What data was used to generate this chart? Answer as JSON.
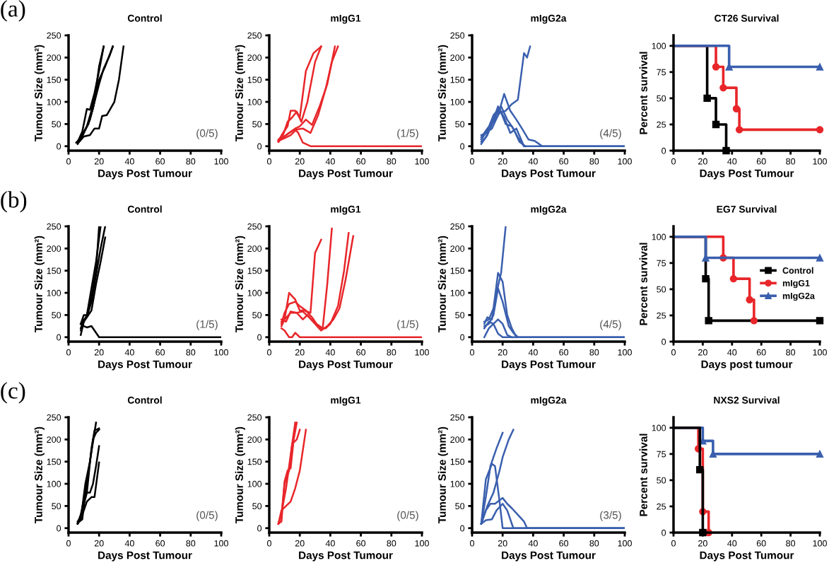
{
  "chart_data": [
    {
      "type": "line",
      "title": "Control",
      "xlabel": "Days Post Tumour",
      "ylabel": "Tumour Size (mm²)",
      "xlim": [
        0,
        100
      ],
      "xticks": [
        0,
        20,
        40,
        60,
        80,
        100
      ],
      "ylim": [
        -10,
        250
      ],
      "yticks": [
        0,
        50,
        100,
        150,
        200,
        250
      ],
      "annotations": [
        "(a)",
        "(0/5)"
      ],
      "series": [
        {
          "color": "#000000",
          "x": [
            5,
            8,
            12,
            15,
            18,
            20,
            23
          ],
          "values": [
            8,
            20,
            45,
            80,
            130,
            180,
            225
          ]
        },
        {
          "color": "#000000",
          "x": [
            6,
            9,
            12,
            14,
            17,
            20,
            23
          ],
          "values": [
            10,
            33,
            84,
            82,
            120,
            170,
            225
          ]
        },
        {
          "color": "#000000",
          "x": [
            6,
            9,
            13,
            16,
            20,
            24,
            29
          ],
          "values": [
            5,
            25,
            50,
            85,
            150,
            180,
            225
          ]
        },
        {
          "color": "#000000",
          "x": [
            6,
            9,
            14,
            17,
            20,
            23,
            27,
            29
          ],
          "values": [
            8,
            22,
            60,
            100,
            140,
            175,
            205,
            225
          ]
        },
        {
          "color": "#000000",
          "x": [
            7,
            10,
            14,
            17,
            20,
            22,
            25,
            30,
            33,
            36
          ],
          "values": [
            10,
            22,
            25,
            40,
            40,
            68,
            70,
            100,
            150,
            225
          ]
        }
      ]
    },
    {
      "type": "line",
      "title": "mIgG1",
      "xlabel": "Days Post Tumour",
      "ylabel": "Tumour Size (mm²)",
      "xlim": [
        0,
        100
      ],
      "xticks": [
        0,
        20,
        40,
        60,
        80,
        100
      ],
      "ylim": [
        -10,
        250
      ],
      "yticks": [
        0,
        50,
        100,
        150,
        200,
        250
      ],
      "annotations": [
        "(1/5)"
      ],
      "series": [
        {
          "color": "#e8262a",
          "x": [
            6,
            9,
            12,
            14,
            17,
            20,
            24,
            29,
            34
          ],
          "values": [
            12,
            30,
            45,
            80,
            80,
            65,
            170,
            210,
            225
          ]
        },
        {
          "color": "#e8262a",
          "x": [
            6,
            9,
            12,
            15,
            18,
            21,
            25,
            30,
            34
          ],
          "values": [
            15,
            25,
            55,
            65,
            78,
            55,
            100,
            190,
            225
          ]
        },
        {
          "color": "#e8262a",
          "x": [
            6,
            9,
            13,
            17,
            20,
            24,
            28,
            33,
            38,
            43
          ],
          "values": [
            10,
            20,
            30,
            40,
            45,
            60,
            48,
            90,
            140,
            225
          ]
        },
        {
          "color": "#e8262a",
          "x": [
            6,
            10,
            14,
            18,
            22,
            27,
            32,
            37,
            41,
            45
          ],
          "values": [
            12,
            18,
            25,
            38,
            40,
            30,
            70,
            130,
            190,
            225
          ]
        },
        {
          "color": "#e8262a",
          "x": [
            6,
            9,
            13,
            17,
            19,
            22,
            27,
            100
          ],
          "values": [
            10,
            20,
            30,
            38,
            30,
            8,
            0,
            0
          ]
        }
      ]
    },
    {
      "type": "line",
      "title": "mIgG2a",
      "xlabel": "Days Post Tumour",
      "ylabel": "Tumour Size (mm²)",
      "xlim": [
        0,
        100
      ],
      "xticks": [
        0,
        20,
        40,
        60,
        80,
        100
      ],
      "ylim": [
        -10,
        250
      ],
      "yticks": [
        0,
        50,
        100,
        150,
        200,
        250
      ],
      "annotations": [
        "(4/5)"
      ],
      "series": [
        {
          "color": "#3a5fae",
          "x": [
            6,
            10,
            14,
            18,
            22,
            26,
            30,
            34,
            36,
            38
          ],
          "values": [
            20,
            40,
            55,
            75,
            80,
            95,
            105,
            210,
            200,
            225
          ]
        },
        {
          "color": "#3a5fae",
          "x": [
            6,
            9,
            13,
            17,
            21,
            25,
            29,
            33,
            37,
            41,
            46,
            100
          ],
          "values": [
            25,
            30,
            40,
            70,
            118,
            80,
            60,
            38,
            15,
            12,
            0,
            0
          ]
        },
        {
          "color": "#3a5fae",
          "x": [
            6,
            9,
            13,
            17,
            21,
            25,
            29,
            34,
            100
          ],
          "values": [
            10,
            20,
            50,
            90,
            65,
            30,
            40,
            0,
            0
          ]
        },
        {
          "color": "#3a5fae",
          "x": [
            6,
            10,
            14,
            18,
            22,
            26,
            30,
            34
          ],
          "values": [
            5,
            25,
            60,
            85,
            50,
            45,
            20,
            0
          ]
        },
        {
          "color": "#3a5fae",
          "x": [
            6,
            10,
            14,
            19,
            23,
            27,
            31,
            35
          ],
          "values": [
            15,
            35,
            70,
            90,
            60,
            40,
            10,
            0
          ]
        }
      ]
    },
    {
      "type": "step",
      "title": "CT26 Survival",
      "xlabel": "Days Post Tumour",
      "ylabel": "Percent survival",
      "xlim": [
        0,
        100
      ],
      "xticks": [
        0,
        20,
        40,
        60,
        80,
        100
      ],
      "ylim": [
        0,
        110
      ],
      "yticks": [
        0,
        25,
        50,
        75,
        100
      ],
      "series": [
        {
          "color": "#000000",
          "marker": "square",
          "x": [
            0,
            23,
            29,
            36
          ],
          "values": [
            100,
            50,
            25,
            0
          ]
        },
        {
          "color": "#e8262a",
          "marker": "circle",
          "x": [
            0,
            29,
            34,
            43,
            45,
            100
          ],
          "values": [
            100,
            80,
            60,
            40,
            20,
            20
          ]
        },
        {
          "color": "#3a5fae",
          "marker": "triangle",
          "x": [
            0,
            38,
            100
          ],
          "values": [
            100,
            80,
            80
          ]
        }
      ]
    },
    {
      "type": "line",
      "title": "Control",
      "xlabel": "Days Post Tumour",
      "ylabel": "Tumour Size (mm²)",
      "xlim": [
        0,
        100
      ],
      "xticks": [
        0,
        20,
        40,
        60,
        80,
        100
      ],
      "ylim": [
        -10,
        250
      ],
      "yticks": [
        0,
        50,
        100,
        150,
        200,
        250
      ],
      "annotations": [
        "(b)",
        "(1/5)"
      ],
      "series": [
        {
          "color": "#000000",
          "x": [
            8,
            10,
            12,
            15,
            18,
            21
          ],
          "values": [
            30,
            50,
            50,
            110,
            170,
            250
          ]
        },
        {
          "color": "#000000",
          "x": [
            8,
            10,
            12,
            15,
            18,
            21,
            24
          ],
          "values": [
            20,
            40,
            45,
            80,
            140,
            200,
            250
          ]
        },
        {
          "color": "#000000",
          "x": [
            8,
            10,
            12,
            15,
            18,
            21,
            24
          ],
          "values": [
            15,
            35,
            45,
            60,
            120,
            170,
            225
          ]
        },
        {
          "color": "#000000",
          "x": [
            8,
            10,
            12,
            15,
            18,
            20
          ],
          "values": [
            5,
            35,
            50,
            90,
            150,
            250
          ]
        },
        {
          "color": "#000000",
          "x": [
            8,
            10,
            12,
            15,
            20,
            100
          ],
          "values": [
            30,
            25,
            22,
            25,
            0,
            0
          ]
        }
      ]
    },
    {
      "type": "line",
      "title": "mIgG1",
      "xlabel": "Days Post Tumour",
      "ylabel": "Tumour Size (mm²)",
      "xlim": [
        0,
        100
      ],
      "xticks": [
        0,
        20,
        40,
        60,
        80,
        100
      ],
      "ylim": [
        -10,
        250
      ],
      "yticks": [
        0,
        50,
        100,
        150,
        200,
        250
      ],
      "annotations": [
        "(1/5)"
      ],
      "series": [
        {
          "color": "#e8262a",
          "x": [
            8,
            10,
            13,
            17,
            20,
            23,
            27,
            30,
            34
          ],
          "values": [
            35,
            40,
            100,
            85,
            60,
            60,
            55,
            190,
            220
          ]
        },
        {
          "color": "#e8262a",
          "x": [
            8,
            10,
            13,
            17,
            20,
            24,
            28,
            31,
            35,
            38,
            41
          ],
          "values": [
            30,
            55,
            75,
            80,
            70,
            60,
            45,
            30,
            20,
            120,
            245
          ]
        },
        {
          "color": "#e8262a",
          "x": [
            8,
            10,
            14,
            18,
            22,
            25,
            29,
            33,
            37,
            40,
            45,
            49,
            52
          ],
          "values": [
            25,
            40,
            55,
            55,
            40,
            50,
            35,
            20,
            20,
            30,
            70,
            150,
            235
          ]
        },
        {
          "color": "#e8262a",
          "x": [
            8,
            11,
            14,
            18,
            22,
            26,
            30,
            34,
            38,
            42,
            46,
            50,
            55
          ],
          "values": [
            40,
            35,
            58,
            55,
            58,
            45,
            30,
            15,
            25,
            40,
            65,
            130,
            228
          ]
        },
        {
          "color": "#e8262a",
          "x": [
            8,
            10,
            13,
            15,
            17,
            20,
            100
          ],
          "values": [
            20,
            15,
            0,
            0,
            10,
            0,
            0
          ]
        }
      ]
    },
    {
      "type": "line",
      "title": "mIgG2a",
      "xlabel": "Days Post Tumour",
      "ylabel": "Tumour Size (mm²)",
      "xlim": [
        0,
        100
      ],
      "xticks": [
        0,
        20,
        40,
        60,
        80,
        100
      ],
      "ylim": [
        -10,
        250
      ],
      "yticks": [
        0,
        50,
        100,
        150,
        200,
        250
      ],
      "annotations": [
        "(4/5)"
      ],
      "series": [
        {
          "color": "#3a5fae",
          "x": [
            8,
            10,
            13,
            16,
            19,
            22
          ],
          "values": [
            30,
            45,
            40,
            100,
            145,
            250
          ]
        },
        {
          "color": "#3a5fae",
          "x": [
            8,
            11,
            14,
            17,
            20,
            23,
            26,
            29
          ],
          "values": [
            35,
            40,
            65,
            145,
            125,
            50,
            20,
            0
          ]
        },
        {
          "color": "#3a5fae",
          "x": [
            8,
            11,
            14,
            17,
            20,
            24,
            27,
            30,
            100
          ],
          "values": [
            25,
            30,
            50,
            110,
            80,
            25,
            10,
            0,
            0
          ]
        },
        {
          "color": "#3a5fae",
          "x": [
            8,
            11,
            14,
            17,
            20,
            23,
            26
          ],
          "values": [
            20,
            35,
            30,
            40,
            30,
            5,
            0
          ]
        },
        {
          "color": "#3a5fae",
          "x": [
            8,
            11,
            14,
            17,
            20,
            100
          ],
          "values": [
            0,
            20,
            30,
            8,
            0,
            0
          ]
        }
      ]
    },
    {
      "type": "step",
      "title": "EG7 Survival",
      "xlabel": "Days post tumour",
      "ylabel": "Percent survival",
      "xlim": [
        0,
        100
      ],
      "xticks": [
        0,
        20,
        40,
        60,
        80,
        100
      ],
      "ylim": [
        0,
        110
      ],
      "yticks": [
        0,
        25,
        50,
        75,
        100
      ],
      "legend": "right",
      "series": [
        {
          "name": "Control",
          "color": "#000000",
          "marker": "square",
          "x": [
            0,
            22,
            24,
            100
          ],
          "values": [
            100,
            60,
            20,
            20
          ]
        },
        {
          "name": "mIgG1",
          "color": "#e8262a",
          "marker": "circle",
          "x": [
            0,
            34,
            41,
            52,
            55
          ],
          "values": [
            100,
            80,
            60,
            40,
            20
          ]
        },
        {
          "name": "mIgG2a",
          "color": "#3a5fae",
          "marker": "triangle",
          "x": [
            0,
            22,
            100
          ],
          "values": [
            100,
            80,
            80
          ]
        }
      ]
    },
    {
      "type": "line",
      "title": "Control",
      "xlabel": "Days Post Tumour",
      "ylabel": "Tumour Size (mm²)",
      "xlim": [
        0,
        100
      ],
      "xticks": [
        0,
        20,
        40,
        60,
        80,
        100
      ],
      "ylim": [
        -10,
        250
      ],
      "yticks": [
        0,
        50,
        100,
        150,
        200,
        250
      ],
      "annotations": [
        "(c)",
        "(0/5)"
      ],
      "series": [
        {
          "color": "#000000",
          "x": [
            6,
            8,
            11,
            14,
            18
          ],
          "values": [
            10,
            20,
            100,
            150,
            238
          ]
        },
        {
          "color": "#000000",
          "x": [
            6,
            8,
            11,
            14,
            16,
            18,
            20
          ],
          "values": [
            10,
            30,
            80,
            150,
            200,
            215,
            222
          ]
        },
        {
          "color": "#000000",
          "x": [
            6,
            9,
            12,
            15,
            17,
            20
          ],
          "values": [
            10,
            40,
            80,
            180,
            220,
            225
          ]
        },
        {
          "color": "#000000",
          "x": [
            6,
            9,
            11,
            14,
            16,
            18,
            20
          ],
          "values": [
            12,
            20,
            80,
            80,
            100,
            140,
            185
          ]
        },
        {
          "color": "#000000",
          "x": [
            6,
            9,
            12,
            15,
            17,
            20
          ],
          "values": [
            15,
            30,
            60,
            70,
            70,
            148
          ]
        }
      ]
    },
    {
      "type": "line",
      "title": "mIgG1",
      "xlabel": "Days Post Tumour",
      "ylabel": "Tumour Size (mm²)",
      "xlim": [
        0,
        100
      ],
      "xticks": [
        0,
        20,
        40,
        60,
        80,
        100
      ],
      "ylim": [
        -10,
        250
      ],
      "yticks": [
        0,
        50,
        100,
        150,
        200,
        250
      ],
      "annotations": [
        "(0/5)"
      ],
      "series": [
        {
          "color": "#e8262a",
          "x": [
            6,
            8,
            10,
            13,
            15,
            17
          ],
          "values": [
            10,
            30,
            100,
            130,
            190,
            238
          ]
        },
        {
          "color": "#e8262a",
          "x": [
            6,
            8,
            10,
            12,
            14,
            16,
            18
          ],
          "values": [
            10,
            15,
            105,
            130,
            135,
            200,
            238
          ]
        },
        {
          "color": "#e8262a",
          "x": [
            6,
            8,
            11,
            15,
            18,
            20
          ],
          "values": [
            10,
            35,
            90,
            190,
            200,
            222
          ]
        },
        {
          "color": "#e8262a",
          "x": [
            6,
            8,
            11,
            14,
            17,
            20,
            24
          ],
          "values": [
            10,
            40,
            50,
            60,
            90,
            130,
            222
          ]
        }
      ]
    },
    {
      "type": "line",
      "title": "mIgG2a",
      "xlabel": "Days Post Tumour",
      "ylabel": "Tumour Size (mm²)",
      "xlim": [
        0,
        100
      ],
      "xticks": [
        0,
        20,
        40,
        60,
        80,
        100
      ],
      "ylim": [
        -10,
        250
      ],
      "yticks": [
        0,
        50,
        100,
        150,
        200,
        250
      ],
      "annotations": [
        "(3/5)"
      ],
      "series": [
        {
          "color": "#3a5fae",
          "x": [
            6,
            9,
            13,
            15,
            18,
            20,
            100
          ],
          "values": [
            10,
            110,
            145,
            140,
            60,
            0,
            0
          ]
        },
        {
          "color": "#3a5fae",
          "x": [
            6,
            9,
            12,
            16,
            20
          ],
          "values": [
            10,
            70,
            140,
            180,
            215
          ]
        },
        {
          "color": "#3a5fae",
          "x": [
            6,
            10,
            14,
            18,
            20,
            24,
            27
          ],
          "values": [
            10,
            50,
            80,
            130,
            160,
            200,
            222
          ]
        },
        {
          "color": "#3a5fae",
          "x": [
            6,
            9,
            12,
            15,
            20,
            23,
            26,
            30,
            34,
            36,
            100
          ],
          "values": [
            10,
            40,
            55,
            55,
            68,
            55,
            45,
            30,
            15,
            0,
            0
          ]
        },
        {
          "color": "#3a5fae",
          "x": [
            6,
            9,
            13,
            16,
            20,
            23,
            27,
            100
          ],
          "values": [
            10,
            18,
            20,
            40,
            55,
            40,
            0,
            0
          ]
        }
      ]
    },
    {
      "type": "step",
      "title": "NXS2 Survival",
      "xlabel": "Days Post Tumour",
      "ylabel": "Percent survival",
      "xlim": [
        0,
        100
      ],
      "xticks": [
        0,
        20,
        40,
        60,
        80,
        100
      ],
      "ylim": [
        0,
        110
      ],
      "yticks": [
        0,
        25,
        50,
        75,
        100
      ],
      "series": [
        {
          "color": "#e8262a",
          "marker": "circle",
          "x": [
            0,
            17,
            20,
            24
          ],
          "values": [
            100,
            80,
            20,
            0
          ]
        },
        {
          "color": "#3a5fae",
          "marker": "triangle",
          "x": [
            0,
            20,
            27,
            100
          ],
          "values": [
            100,
            87.5,
            75,
            75
          ]
        },
        {
          "color": "#000000",
          "marker": "square",
          "x": [
            0,
            18,
            20
          ],
          "values": [
            100,
            60,
            0
          ]
        }
      ]
    }
  ]
}
